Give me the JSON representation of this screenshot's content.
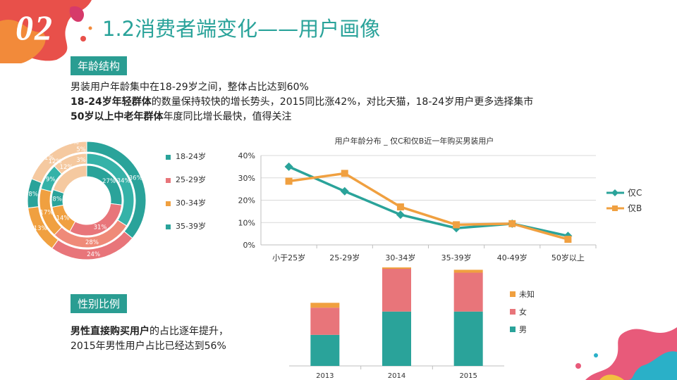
{
  "header": {
    "section_number": "02",
    "title": "1.2消费者端变化——用户画像"
  },
  "age_section": {
    "tag": "年龄结构",
    "lines": [
      {
        "bold": "",
        "rest": "男装用户年龄集中在18-29岁之间，整体占比达到60%"
      },
      {
        "bold": "18-24岁年轻群体",
        "rest": "的数量保持较快的增长势头，2015同比涨42%，对比天猫，18-24岁用户更多选择集市"
      },
      {
        "bold": "50岁以上中老年群体",
        "rest": "年度同比增长最快，值得关注"
      }
    ]
  },
  "gender_section": {
    "tag": "性别比例",
    "line1_bold": "男性直接购买用户",
    "line1_rest": "的占比逐年提升，",
    "line2": "2015年男性用户占比已经达到56%"
  },
  "colors": {
    "teal": "#2aa39a",
    "pink": "#e8757a",
    "orange": "#f0a040",
    "light_teal": "#35b2a8",
    "salmon": "#ef8a78",
    "line_c": "#2aa39a",
    "line_b": "#f0a040"
  },
  "chart_data": [
    {
      "type": "donut",
      "legend_position": "right",
      "categories": [
        "18-24岁",
        "25-29岁",
        "30-34岁",
        "35-39岁"
      ],
      "rings": [
        {
          "values": [
            27,
            31,
            14,
            8
          ],
          "labels": [
            "27%",
            "31%",
            "14%",
            "8%"
          ]
        },
        {
          "values": [
            34,
            28,
            17,
            9
          ],
          "labels": [
            "34%",
            "28%",
            "17%",
            "9%"
          ]
        },
        {
          "values": [
            36,
            24,
            13,
            8
          ],
          "labels": [
            "36%",
            "24%",
            "13%",
            "8%"
          ]
        }
      ],
      "extra_labels": [
        "7%",
        "5%",
        "3%",
        "11%",
        "12%",
        "12%"
      ]
    },
    {
      "type": "line",
      "title": "用户年龄分布 _ 仅C和仅B近一年购买男装用户",
      "categories": [
        "小于25岁",
        "25-29岁",
        "30-34岁",
        "35-39岁",
        "40-49岁",
        "50岁以上"
      ],
      "y_ticks": [
        "0%",
        "10%",
        "20%",
        "30%",
        "40%"
      ],
      "ylim": [
        0,
        40
      ],
      "grid": true,
      "legend_position": "right",
      "series": [
        {
          "name": "仅C",
          "values": [
            35,
            24,
            13.5,
            7.5,
            9.5,
            4
          ]
        },
        {
          "name": "仅B",
          "values": [
            28.5,
            32,
            17,
            9,
            9.5,
            2.5
          ]
        }
      ]
    },
    {
      "type": "bar",
      "stacked": true,
      "categories": [
        "2013",
        "2014",
        "2015"
      ],
      "legend_position": "right",
      "series": [
        {
          "name": "男",
          "values": [
            32,
            56,
            56
          ]
        },
        {
          "name": "女",
          "values": [
            28,
            44,
            40
          ]
        },
        {
          "name": "未知",
          "values": [
            5,
            5,
            3
          ]
        }
      ]
    }
  ]
}
